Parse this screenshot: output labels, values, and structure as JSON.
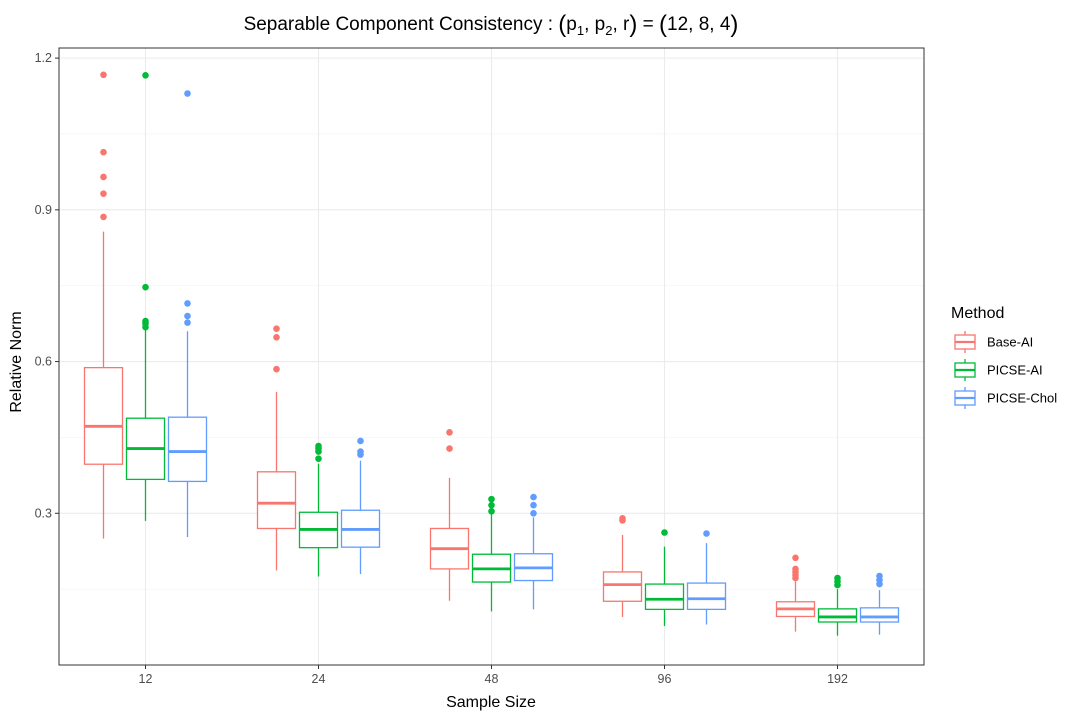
{
  "chart_data": {
    "type": "box",
    "title": "Separable Component Consistency : (p1, p2, r) = (12, 8, 4)",
    "title_parts": {
      "prefix": "Separable Component Consistency : ",
      "open": "(",
      "p": "p",
      "sub1": "1",
      "sub2": "2",
      "sep": ", ",
      "r": "r",
      "close": ")",
      "eq": " = ",
      "rhs": "12, 8, 4"
    },
    "xlabel": "Sample Size",
    "ylabel": "Relative Norm",
    "categories": [
      "12",
      "24",
      "48",
      "96",
      "192"
    ],
    "ylim": [
      0.0,
      1.22
    ],
    "yticks": [
      0.3,
      0.6,
      0.9,
      1.2
    ],
    "ytick_labels": [
      "0.3",
      "0.6",
      "0.9",
      "1.2"
    ],
    "grid": true,
    "legend": {
      "title": "Method",
      "position": "right"
    },
    "series": [
      {
        "name": "Base-AI",
        "color": "#F8766D",
        "boxes": [
          {
            "lower_whisker": 0.25,
            "q1": 0.397,
            "median": 0.472,
            "q3": 0.588,
            "upper_whisker": 0.857,
            "outliers": [
              0.886,
              0.932,
              0.965,
              1.014,
              1.167
            ]
          },
          {
            "lower_whisker": 0.187,
            "q1": 0.27,
            "median": 0.32,
            "q3": 0.382,
            "upper_whisker": 0.54,
            "outliers": [
              0.585,
              0.648,
              0.665
            ]
          },
          {
            "lower_whisker": 0.127,
            "q1": 0.19,
            "median": 0.23,
            "q3": 0.27,
            "upper_whisker": 0.37,
            "outliers": [
              0.428,
              0.46
            ]
          },
          {
            "lower_whisker": 0.095,
            "q1": 0.126,
            "median": 0.159,
            "q3": 0.184,
            "upper_whisker": 0.257,
            "outliers": [
              0.286,
              0.29
            ]
          },
          {
            "lower_whisker": 0.066,
            "q1": 0.096,
            "median": 0.111,
            "q3": 0.125,
            "upper_whisker": 0.165,
            "outliers": [
              0.172,
              0.178,
              0.184,
              0.19,
              0.212
            ]
          }
        ]
      },
      {
        "name": "PICSE-AI",
        "color": "#00BA38",
        "boxes": [
          {
            "lower_whisker": 0.285,
            "q1": 0.367,
            "median": 0.428,
            "q3": 0.488,
            "upper_whisker": 0.663,
            "outliers": [
              0.668,
              0.675,
              0.68,
              0.747,
              1.166
            ]
          },
          {
            "lower_whisker": 0.175,
            "q1": 0.232,
            "median": 0.268,
            "q3": 0.302,
            "upper_whisker": 0.398,
            "outliers": [
              0.408,
              0.422,
              0.428,
              0.433
            ]
          },
          {
            "lower_whisker": 0.106,
            "q1": 0.164,
            "median": 0.19,
            "q3": 0.219,
            "upper_whisker": 0.298,
            "outliers": [
              0.304,
              0.316,
              0.328
            ]
          },
          {
            "lower_whisker": 0.077,
            "q1": 0.11,
            "median": 0.13,
            "q3": 0.16,
            "upper_whisker": 0.234,
            "outliers": [
              0.262
            ]
          },
          {
            "lower_whisker": 0.058,
            "q1": 0.085,
            "median": 0.095,
            "q3": 0.111,
            "upper_whisker": 0.15,
            "outliers": [
              0.158,
              0.165,
              0.172
            ]
          }
        ]
      },
      {
        "name": "PICSE-Chol",
        "color": "#619CFF",
        "boxes": [
          {
            "lower_whisker": 0.253,
            "q1": 0.363,
            "median": 0.422,
            "q3": 0.49,
            "upper_whisker": 0.66,
            "outliers": [
              0.677,
              0.69,
              0.715,
              1.13
            ]
          },
          {
            "lower_whisker": 0.18,
            "q1": 0.233,
            "median": 0.268,
            "q3": 0.306,
            "upper_whisker": 0.404,
            "outliers": [
              0.416,
              0.422,
              0.443
            ]
          },
          {
            "lower_whisker": 0.11,
            "q1": 0.167,
            "median": 0.192,
            "q3": 0.22,
            "upper_whisker": 0.292,
            "outliers": [
              0.3,
              0.316,
              0.332
            ]
          },
          {
            "lower_whisker": 0.08,
            "q1": 0.11,
            "median": 0.131,
            "q3": 0.162,
            "upper_whisker": 0.241,
            "outliers": [
              0.26
            ]
          },
          {
            "lower_whisker": 0.06,
            "q1": 0.085,
            "median": 0.095,
            "q3": 0.113,
            "upper_whisker": 0.148,
            "outliers": [
              0.16,
              0.168,
              0.176
            ]
          }
        ]
      }
    ]
  }
}
